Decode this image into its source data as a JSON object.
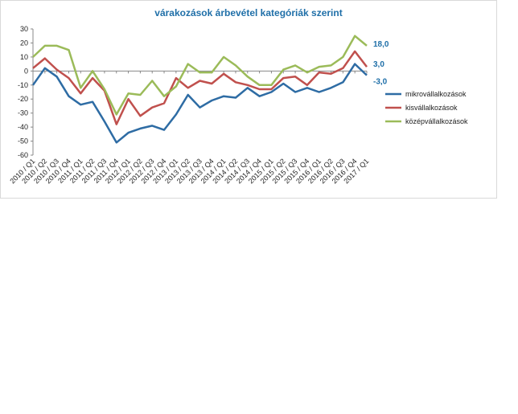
{
  "chart_data": {
    "type": "line",
    "title": "várakozások árbevétel kategóriák szerint",
    "xlabel": "",
    "ylabel": "",
    "ylim": [
      -60,
      30
    ],
    "yticks": [
      30,
      20,
      10,
      0,
      -10,
      -20,
      -30,
      -40,
      -50,
      -60
    ],
    "grid": false,
    "legend": "right",
    "categories": [
      "2010 / Q1",
      "2010 / Q2",
      "2010 / Q3",
      "2010 / Q4",
      "2011 / Q1",
      "2011 / Q2",
      "2011 / Q3",
      "2011 / Q4",
      "2012 / Q1",
      "2012 / Q2",
      "2012 / Q3",
      "2012 / Q4",
      "2013 / Q1",
      "2013 / Q2",
      "2013 / Q3",
      "2013 / Q4",
      "2014 / Q1",
      "2014 / Q2",
      "2014 / Q3",
      "2014 / Q4",
      "2015 / Q1",
      "2015 / Q2",
      "2015 / Q3",
      "2015 / Q4",
      "2016 / Q1",
      "2016 / Q2",
      "2016 / Q3",
      "2016 / Q4",
      "2017 / Q1"
    ],
    "series": [
      {
        "name": "mikrovállalkozások",
        "color": "#2e6ca4",
        "values": [
          -10,
          2,
          -4,
          -18,
          -24,
          -22,
          -36,
          -51,
          -44,
          -41,
          -39,
          -42,
          -31,
          -17,
          -26,
          -21,
          -18,
          -19,
          -12,
          -18,
          -15,
          -9,
          -15,
          -12,
          -15,
          -12,
          -8,
          5,
          -3
        ]
      },
      {
        "name": "kisvállalkozások",
        "color": "#c0504d",
        "values": [
          2,
          9,
          1,
          -5,
          -16,
          -5,
          -14,
          -38,
          -20,
          -32,
          -26,
          -23,
          -5,
          -12,
          -7,
          -9,
          -2,
          -8,
          -10,
          -13,
          -13,
          -5,
          -4,
          -10,
          -1,
          -2,
          2,
          14,
          3
        ]
      },
      {
        "name": "középvállalkozások",
        "color": "#9bbb59",
        "values": [
          10,
          18,
          18,
          15,
          -12,
          0,
          -13,
          -31,
          -16,
          -17,
          -7,
          -18,
          -11,
          5,
          -1,
          -1,
          10,
          4,
          -4,
          -10,
          -10,
          1,
          4,
          -1,
          3,
          4,
          10,
          25,
          18
        ]
      }
    ],
    "end_labels": [
      "18,0",
      "3,0",
      "-3,0"
    ]
  }
}
